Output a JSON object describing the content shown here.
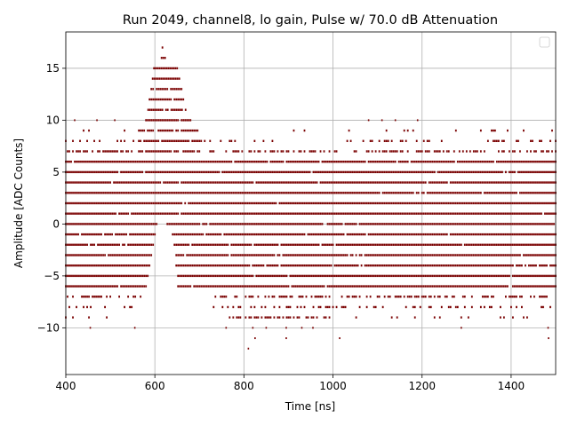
{
  "chart_data": {
    "type": "scatter",
    "title": "Run 2049, channel8, lo gain, Pulse w/ 70.0 dB Attenuation",
    "xlabel": "Time [ns]",
    "ylabel": "Amplitude [ADC Counts]",
    "xlim": [
      400,
      1500
    ],
    "ylim": [
      -14.5,
      18.5
    ],
    "x_ticks": [
      400,
      600,
      800,
      1000,
      1200,
      1400
    ],
    "y_ticks": [
      -10,
      -5,
      0,
      5,
      10,
      15
    ],
    "grid": true,
    "legend": {
      "placement": "top-right",
      "entries": []
    },
    "point_color": "#7a0000",
    "sample_step_ns": 4,
    "baseline_levels": [
      -6,
      -5,
      -4,
      -3,
      -2,
      -1,
      0,
      1,
      2,
      3,
      4,
      5,
      6
    ],
    "sparse_levels": [
      {
        "level": 7,
        "x_range": [
          400,
          1500
        ],
        "gap": [
          1015,
          1045
        ]
      },
      {
        "level": -7,
        "x_range": [
          400,
          1500
        ],
        "gap": []
      },
      {
        "level": 8,
        "x_range": [
          400,
          1500
        ],
        "gap": [],
        "sparse_between": [
          730,
          1020
        ]
      },
      {
        "level": -8,
        "x_range": [
          400,
          1500
        ],
        "gap": [],
        "sparse_before": 710
      },
      {
        "level": 9,
        "x_range": [
          400,
          1500
        ],
        "gap": [],
        "sparse_between": [
          660,
          1080
        ]
      },
      {
        "level": -9,
        "x_range": [
          400,
          1500
        ],
        "gap": [],
        "dense_between": [
          760,
          1000
        ]
      }
    ],
    "pulse": {
      "peak_time_ns": 620,
      "peak_amplitude": 17,
      "rise_start_ns": 570,
      "fall_end_ns": 680,
      "levels": [
        {
          "level": 10,
          "x_range": [
            580,
            680
          ]
        },
        {
          "level": 11,
          "x_range": [
            585,
            670
          ]
        },
        {
          "level": 12,
          "x_range": [
            588,
            665
          ]
        },
        {
          "level": 13,
          "x_range": [
            592,
            660
          ]
        },
        {
          "level": 14,
          "x_range": [
            595,
            658
          ]
        },
        {
          "level": 15,
          "x_range": [
            598,
            652
          ]
        },
        {
          "level": 16,
          "x_range": [
            615,
            625
          ]
        },
        {
          "level": 17,
          "x_range": [
            617,
            619
          ]
        }
      ]
    },
    "outliers": [
      {
        "x": 420,
        "y": 10
      },
      {
        "x": 470,
        "y": 10
      },
      {
        "x": 510,
        "y": 10
      },
      {
        "x": 1080,
        "y": 10
      },
      {
        "x": 1110,
        "y": 10
      },
      {
        "x": 1140,
        "y": 10
      },
      {
        "x": 1190,
        "y": 10
      },
      {
        "x": 455,
        "y": -10
      },
      {
        "x": 555,
        "y": -10
      },
      {
        "x": 760,
        "y": -10
      },
      {
        "x": 820,
        "y": -10
      },
      {
        "x": 850,
        "y": -10
      },
      {
        "x": 895,
        "y": -10
      },
      {
        "x": 930,
        "y": -10
      },
      {
        "x": 955,
        "y": -10
      },
      {
        "x": 1288,
        "y": -10
      },
      {
        "x": 1483,
        "y": -10
      },
      {
        "x": 825,
        "y": -11
      },
      {
        "x": 895,
        "y": -11
      },
      {
        "x": 1015,
        "y": -11
      },
      {
        "x": 1484,
        "y": -11
      },
      {
        "x": 810,
        "y": -12
      }
    ]
  }
}
